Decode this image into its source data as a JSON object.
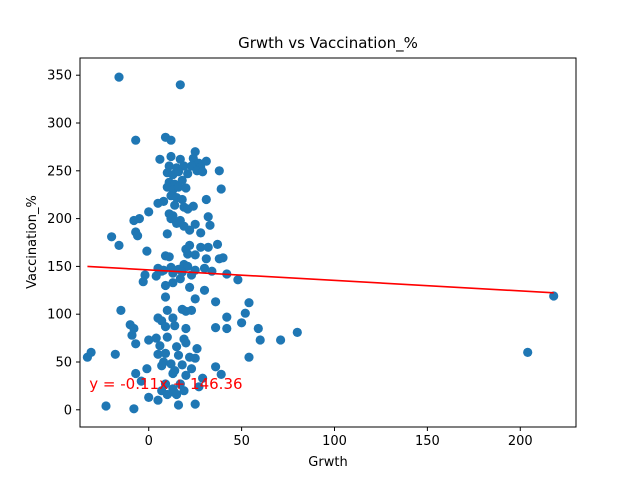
{
  "chart_data": {
    "type": "scatter",
    "title": "Grwth vs Vaccination_%",
    "xlabel": "Grwth",
    "ylabel": "Vaccination_%",
    "xlim": [
      -37,
      230
    ],
    "ylim": [
      -18,
      368
    ],
    "xticks": [
      0,
      50,
      100,
      150,
      200
    ],
    "yticks": [
      0,
      50,
      100,
      150,
      200,
      250,
      300,
      350
    ],
    "grid": false,
    "marker_color": "#1f77b4",
    "regression": {
      "slope": -0.11,
      "intercept": 146.36,
      "x_range": [
        -33,
        218
      ],
      "color": "#ff0000",
      "equation_label": "y = -0.11x + 146.36",
      "label_anchor": [
        -32,
        22
      ]
    },
    "points": [
      [
        -16,
        348
      ],
      [
        17,
        340
      ],
      [
        -7,
        282
      ],
      [
        9,
        285
      ],
      [
        12,
        282
      ],
      [
        25,
        270
      ],
      [
        12,
        265
      ],
      [
        6,
        262
      ],
      [
        17,
        262
      ],
      [
        24,
        263
      ],
      [
        27,
        258
      ],
      [
        31,
        260
      ],
      [
        11,
        255
      ],
      [
        15,
        253
      ],
      [
        19,
        255
      ],
      [
        23,
        255
      ],
      [
        28,
        254
      ],
      [
        10,
        248
      ],
      [
        13,
        246
      ],
      [
        16,
        249
      ],
      [
        21,
        247
      ],
      [
        26,
        250
      ],
      [
        29,
        249
      ],
      [
        38,
        250
      ],
      [
        11,
        238
      ],
      [
        14,
        236
      ],
      [
        18,
        240
      ],
      [
        10,
        233
      ],
      [
        13,
        230
      ],
      [
        16,
        233
      ],
      [
        20,
        232
      ],
      [
        39,
        231
      ],
      [
        12,
        224
      ],
      [
        15,
        222
      ],
      [
        18,
        220
      ],
      [
        31,
        220
      ],
      [
        5,
        216
      ],
      [
        8,
        218
      ],
      [
        14,
        214
      ],
      [
        19,
        212
      ],
      [
        21,
        210
      ],
      [
        24,
        213
      ],
      [
        0,
        207
      ],
      [
        11,
        205
      ],
      [
        13,
        203
      ],
      [
        -8,
        198
      ],
      [
        -5,
        200
      ],
      [
        12,
        200
      ],
      [
        17,
        198
      ],
      [
        32,
        202
      ],
      [
        15,
        195
      ],
      [
        19,
        192
      ],
      [
        25,
        194
      ],
      [
        33,
        193
      ],
      [
        -7,
        186
      ],
      [
        -6,
        182
      ],
      [
        10,
        184
      ],
      [
        22,
        188
      ],
      [
        28,
        185
      ],
      [
        -20,
        181
      ],
      [
        -16,
        172
      ],
      [
        -1,
        166
      ],
      [
        20,
        168
      ],
      [
        22,
        172
      ],
      [
        28,
        170
      ],
      [
        32,
        170
      ],
      [
        37,
        173
      ],
      [
        9,
        161
      ],
      [
        11,
        160
      ],
      [
        21,
        163
      ],
      [
        25,
        162
      ],
      [
        31,
        158
      ],
      [
        38,
        158
      ],
      [
        40,
        159
      ],
      [
        5,
        148
      ],
      [
        8,
        146
      ],
      [
        12,
        149
      ],
      [
        16,
        147
      ],
      [
        19,
        152
      ],
      [
        21,
        150
      ],
      [
        25,
        146
      ],
      [
        30,
        148
      ],
      [
        34,
        145
      ],
      [
        -2,
        141
      ],
      [
        4,
        140
      ],
      [
        7,
        145
      ],
      [
        13,
        143
      ],
      [
        18,
        144
      ],
      [
        23,
        141
      ],
      [
        42,
        142
      ],
      [
        -3,
        134
      ],
      [
        9,
        130
      ],
      [
        13,
        133
      ],
      [
        17,
        137
      ],
      [
        22,
        128
      ],
      [
        30,
        125
      ],
      [
        48,
        136
      ],
      [
        9,
        118
      ],
      [
        25,
        116
      ],
      [
        36,
        113
      ],
      [
        54,
        112
      ],
      [
        -15,
        104
      ],
      [
        10,
        104
      ],
      [
        18,
        105
      ],
      [
        20,
        103
      ],
      [
        23,
        104
      ],
      [
        52,
        101
      ],
      [
        5,
        96
      ],
      [
        7,
        93
      ],
      [
        13,
        96
      ],
      [
        42,
        97
      ],
      [
        50,
        91
      ],
      [
        -10,
        89
      ],
      [
        -8,
        85
      ],
      [
        9,
        87
      ],
      [
        14,
        88
      ],
      [
        20,
        85
      ],
      [
        36,
        86
      ],
      [
        42,
        85
      ],
      [
        59,
        85
      ],
      [
        80,
        81
      ],
      [
        -9,
        78
      ],
      [
        4,
        75
      ],
      [
        10,
        76
      ],
      [
        19,
        74
      ],
      [
        20,
        70
      ],
      [
        60,
        73
      ],
      [
        71,
        73
      ],
      [
        -7,
        69
      ],
      [
        0,
        73
      ],
      [
        6,
        67
      ],
      [
        15,
        66
      ],
      [
        26,
        64
      ],
      [
        -33,
        55
      ],
      [
        -31,
        60
      ],
      [
        -18,
        58
      ],
      [
        5,
        58
      ],
      [
        9,
        59
      ],
      [
        16,
        57
      ],
      [
        22,
        55
      ],
      [
        25,
        54
      ],
      [
        54,
        55
      ],
      [
        204,
        60
      ],
      [
        8,
        50
      ],
      [
        12,
        48
      ],
      [
        18,
        47
      ],
      [
        -1,
        43
      ],
      [
        7,
        46
      ],
      [
        14,
        41
      ],
      [
        23,
        43
      ],
      [
        36,
        45
      ],
      [
        -7,
        38
      ],
      [
        13,
        38
      ],
      [
        20,
        36
      ],
      [
        29,
        33
      ],
      [
        39,
        37
      ],
      [
        -4,
        30
      ],
      [
        9,
        27
      ],
      [
        13,
        22
      ],
      [
        17,
        27
      ],
      [
        27,
        24
      ],
      [
        7,
        20
      ],
      [
        14,
        18
      ],
      [
        19,
        20
      ],
      [
        0,
        13
      ],
      [
        5,
        10
      ],
      [
        10,
        16
      ],
      [
        15,
        16
      ],
      [
        -23,
        4
      ],
      [
        -8,
        1
      ],
      [
        16,
        5
      ],
      [
        25,
        6
      ],
      [
        218,
        119
      ]
    ]
  }
}
